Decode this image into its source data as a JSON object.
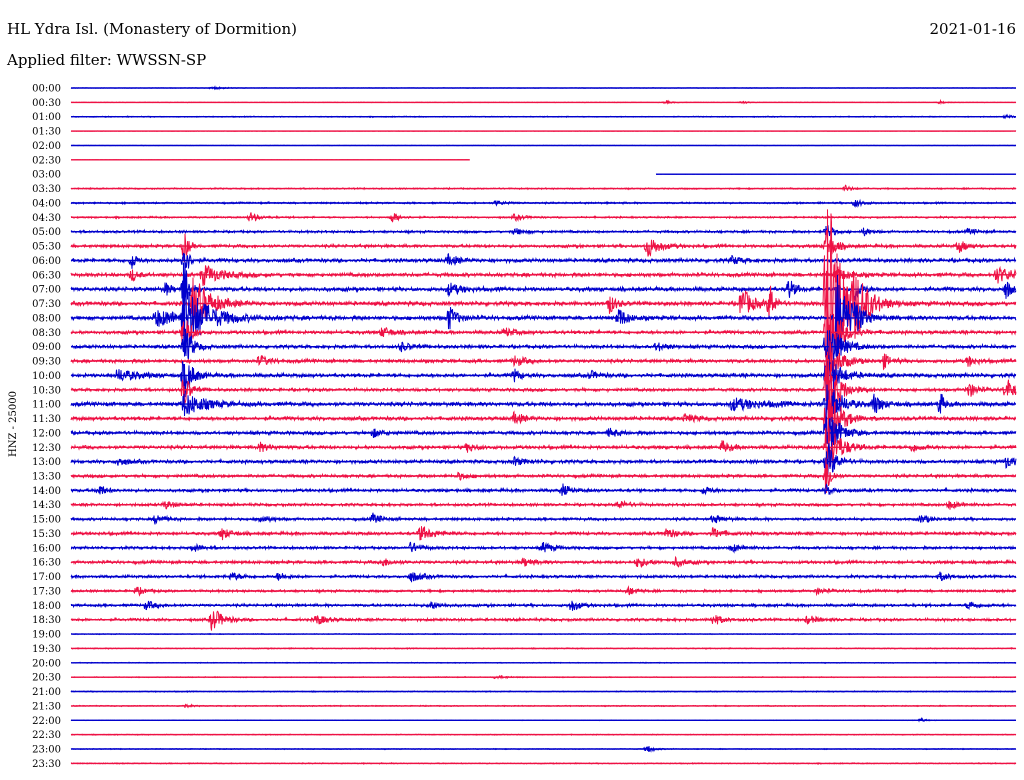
{
  "header": {
    "station": "HL Ydra Isl. (Monastery of Dormition)",
    "date": "2021-01-16",
    "filter": "Applied filter: WWSSN-SP"
  },
  "chart_data": {
    "type": "line",
    "channel_label": "HNZ - 25000",
    "colors": [
      "#0000cc",
      "#ee1144"
    ],
    "rows": [
      {
        "time": "00:00",
        "noise": 0.3,
        "events": [
          [
            0.15,
            1.5,
            0.01
          ]
        ]
      },
      {
        "time": "00:30",
        "noise": 0.3,
        "events": [
          [
            0.63,
            1.5,
            0.006
          ],
          [
            0.71,
            1.5,
            0.006
          ],
          [
            0.92,
            1.5,
            0.006
          ]
        ]
      },
      {
        "time": "01:00",
        "noise": 0.6,
        "events": [
          [
            0.99,
            2,
            0.006
          ]
        ]
      },
      {
        "time": "01:30",
        "noise": 0.2,
        "events": []
      },
      {
        "time": "02:00",
        "noise": 0.2,
        "events": []
      },
      {
        "time": "02:30",
        "noise": 0.2,
        "events": [],
        "end": 0.422
      },
      {
        "time": "03:00",
        "noise": 0.2,
        "events": [],
        "start": 0.619
      },
      {
        "time": "03:30",
        "noise": 0.8,
        "events": [
          [
            0.82,
            3,
            0.006
          ]
        ]
      },
      {
        "time": "04:00",
        "noise": 1.0,
        "events": [
          [
            0.83,
            4,
            0.008
          ],
          [
            0.45,
            2,
            0.01
          ]
        ]
      },
      {
        "time": "04:30",
        "noise": 1.0,
        "events": [
          [
            0.19,
            5,
            0.008
          ],
          [
            0.34,
            5,
            0.008
          ],
          [
            0.47,
            3,
            0.01
          ]
        ]
      },
      {
        "time": "05:00",
        "noise": 1.4,
        "events": [
          [
            0.47,
            3,
            0.01
          ],
          [
            0.8,
            8,
            0.006
          ],
          [
            0.84,
            4,
            0.006
          ],
          [
            0.95,
            3,
            0.008
          ]
        ]
      },
      {
        "time": "05:30",
        "noise": 1.8,
        "events": [
          [
            0.12,
            16,
            0.004
          ],
          [
            0.61,
            11,
            0.012
          ],
          [
            0.8,
            16,
            0.008
          ],
          [
            0.94,
            6,
            0.008
          ]
        ]
      },
      {
        "time": "06:00",
        "noise": 2.2,
        "events": [
          [
            0.12,
            22,
            0.004
          ],
          [
            0.065,
            9,
            0.004
          ],
          [
            0.4,
            5,
            0.01
          ],
          [
            0.7,
            4,
            0.01
          ]
        ]
      },
      {
        "time": "06:30",
        "noise": 2.2,
        "events": [
          [
            0.14,
            10,
            0.018
          ],
          [
            0.065,
            6,
            0.006
          ],
          [
            0.81,
            7,
            0.012
          ],
          [
            0.98,
            8,
            0.018
          ]
        ]
      },
      {
        "time": "07:00",
        "noise": 2.4,
        "events": [
          [
            0.12,
            32,
            0.004
          ],
          [
            0.1,
            6,
            0.006
          ],
          [
            0.4,
            6,
            0.012
          ],
          [
            0.76,
            10,
            0.006
          ],
          [
            0.83,
            12,
            0.006
          ],
          [
            0.99,
            9,
            0.006
          ]
        ]
      },
      {
        "time": "07:30",
        "noise": 2.4,
        "events": [
          [
            0.13,
            28,
            0.016
          ],
          [
            0.71,
            16,
            0.01
          ],
          [
            0.74,
            20,
            0.004
          ],
          [
            0.57,
            10,
            0.006
          ],
          [
            0.8,
            120,
            0.016
          ],
          [
            0.83,
            20,
            0.012
          ]
        ]
      },
      {
        "time": "08:00",
        "noise": 2.4,
        "events": [
          [
            0.12,
            34,
            0.02
          ],
          [
            0.09,
            8,
            0.04
          ],
          [
            0.4,
            12,
            0.008
          ],
          [
            0.58,
            10,
            0.008
          ],
          [
            0.81,
            48,
            0.012
          ],
          [
            0.83,
            14,
            0.006
          ]
        ]
      },
      {
        "time": "08:30",
        "noise": 2.0,
        "events": [
          [
            0.12,
            22,
            0.006
          ],
          [
            0.8,
            40,
            0.012
          ],
          [
            0.33,
            5,
            0.01
          ],
          [
            0.46,
            4,
            0.01
          ]
        ]
      },
      {
        "time": "09:00",
        "noise": 2.0,
        "events": [
          [
            0.12,
            20,
            0.008
          ],
          [
            0.8,
            30,
            0.012
          ],
          [
            0.35,
            4,
            0.01
          ],
          [
            0.62,
            4,
            0.01
          ]
        ]
      },
      {
        "time": "09:30",
        "noise": 2.0,
        "events": [
          [
            0.2,
            5,
            0.01
          ],
          [
            0.47,
            5,
            0.01
          ],
          [
            0.8,
            26,
            0.012
          ],
          [
            0.86,
            7,
            0.008
          ],
          [
            0.95,
            5,
            0.008
          ]
        ]
      },
      {
        "time": "10:00",
        "noise": 2.2,
        "events": [
          [
            0.05,
            6,
            0.02
          ],
          [
            0.12,
            22,
            0.008
          ],
          [
            0.47,
            6,
            0.006
          ],
          [
            0.8,
            24,
            0.012
          ],
          [
            0.55,
            4,
            0.008
          ]
        ]
      },
      {
        "time": "10:30",
        "noise": 1.8,
        "events": [
          [
            0.12,
            16,
            0.006
          ],
          [
            0.8,
            34,
            0.012
          ],
          [
            0.95,
            8,
            0.008
          ],
          [
            0.99,
            12,
            0.008
          ]
        ]
      },
      {
        "time": "11:00",
        "noise": 2.4,
        "events": [
          [
            0.12,
            12,
            0.02
          ],
          [
            0.7,
            6,
            0.03
          ],
          [
            0.8,
            26,
            0.012
          ],
          [
            0.85,
            10,
            0.008
          ],
          [
            0.92,
            12,
            0.004
          ]
        ]
      },
      {
        "time": "11:30",
        "noise": 2.2,
        "events": [
          [
            0.47,
            6,
            0.008
          ],
          [
            0.8,
            36,
            0.012
          ],
          [
            0.65,
            4,
            0.01
          ]
        ]
      },
      {
        "time": "12:00",
        "noise": 2.0,
        "events": [
          [
            0.32,
            4,
            0.01
          ],
          [
            0.8,
            26,
            0.012
          ],
          [
            0.57,
            4,
            0.01
          ]
        ]
      },
      {
        "time": "12:30",
        "noise": 2.0,
        "events": [
          [
            0.2,
            4,
            0.01
          ],
          [
            0.42,
            4,
            0.01
          ],
          [
            0.69,
            6,
            0.008
          ],
          [
            0.8,
            30,
            0.012
          ],
          [
            0.89,
            4,
            0.01
          ]
        ]
      },
      {
        "time": "13:00",
        "noise": 2.0,
        "events": [
          [
            0.05,
            4,
            0.01
          ],
          [
            0.47,
            4,
            0.01
          ],
          [
            0.8,
            22,
            0.008
          ],
          [
            0.99,
            6,
            0.008
          ]
        ]
      },
      {
        "time": "13:30",
        "noise": 1.8,
        "events": [
          [
            0.8,
            22,
            0.004
          ],
          [
            0.41,
            3,
            0.01
          ]
        ]
      },
      {
        "time": "14:00",
        "noise": 1.8,
        "events": [
          [
            0.03,
            6,
            0.006
          ],
          [
            0.52,
            6,
            0.008
          ],
          [
            0.67,
            4,
            0.008
          ],
          [
            0.8,
            5,
            0.006
          ]
        ]
      },
      {
        "time": "14:30",
        "noise": 1.6,
        "events": [
          [
            0.1,
            4,
            0.01
          ],
          [
            0.58,
            4,
            0.01
          ],
          [
            0.93,
            4,
            0.01
          ]
        ]
      },
      {
        "time": "15:00",
        "noise": 1.6,
        "events": [
          [
            0.09,
            5,
            0.008
          ],
          [
            0.2,
            4,
            0.01
          ],
          [
            0.32,
            5,
            0.008
          ],
          [
            0.68,
            4,
            0.01
          ],
          [
            0.9,
            4,
            0.01
          ]
        ]
      },
      {
        "time": "15:30",
        "noise": 1.8,
        "events": [
          [
            0.16,
            6,
            0.008
          ],
          [
            0.37,
            7,
            0.014
          ],
          [
            0.63,
            5,
            0.01
          ],
          [
            0.68,
            5,
            0.01
          ]
        ]
      },
      {
        "time": "16:00",
        "noise": 1.6,
        "events": [
          [
            0.13,
            4,
            0.008
          ],
          [
            0.36,
            5,
            0.01
          ],
          [
            0.5,
            5,
            0.01
          ],
          [
            0.7,
            4,
            0.01
          ]
        ]
      },
      {
        "time": "16:30",
        "noise": 1.8,
        "events": [
          [
            0.33,
            4,
            0.01
          ],
          [
            0.48,
            4,
            0.01
          ],
          [
            0.6,
            5,
            0.01
          ],
          [
            0.64,
            4,
            0.01
          ]
        ]
      },
      {
        "time": "17:00",
        "noise": 1.6,
        "events": [
          [
            0.17,
            4,
            0.01
          ],
          [
            0.22,
            4,
            0.008
          ],
          [
            0.36,
            5,
            0.012
          ],
          [
            0.92,
            4,
            0.01
          ]
        ]
      },
      {
        "time": "17:30",
        "noise": 1.4,
        "events": [
          [
            0.07,
            4,
            0.008
          ],
          [
            0.59,
            4,
            0.008
          ],
          [
            0.79,
            3,
            0.01
          ]
        ]
      },
      {
        "time": "18:00",
        "noise": 1.6,
        "events": [
          [
            0.08,
            4,
            0.01
          ],
          [
            0.38,
            4,
            0.01
          ],
          [
            0.53,
            6,
            0.008
          ],
          [
            0.95,
            4,
            0.01
          ]
        ]
      },
      {
        "time": "18:30",
        "noise": 1.6,
        "events": [
          [
            0.15,
            12,
            0.01
          ],
          [
            0.26,
            5,
            0.01
          ],
          [
            0.68,
            5,
            0.01
          ],
          [
            0.78,
            4,
            0.01
          ]
        ]
      },
      {
        "time": "19:00",
        "noise": 0.5,
        "events": []
      },
      {
        "time": "19:30",
        "noise": 0.6,
        "events": []
      },
      {
        "time": "20:00",
        "noise": 0.5,
        "events": []
      },
      {
        "time": "20:30",
        "noise": 0.5,
        "events": [
          [
            0.45,
            2,
            0.01
          ]
        ]
      },
      {
        "time": "21:00",
        "noise": 0.6,
        "events": []
      },
      {
        "time": "21:30",
        "noise": 0.6,
        "events": [
          [
            0.12,
            2,
            0.006
          ]
        ]
      },
      {
        "time": "22:00",
        "noise": 0.3,
        "events": [
          [
            0.9,
            1.5,
            0.006
          ]
        ]
      },
      {
        "time": "22:30",
        "noise": 0.5,
        "events": []
      },
      {
        "time": "23:00",
        "noise": 0.5,
        "events": [
          [
            0.61,
            4,
            0.006
          ]
        ]
      },
      {
        "time": "23:30",
        "noise": 0.6,
        "events": []
      }
    ]
  }
}
